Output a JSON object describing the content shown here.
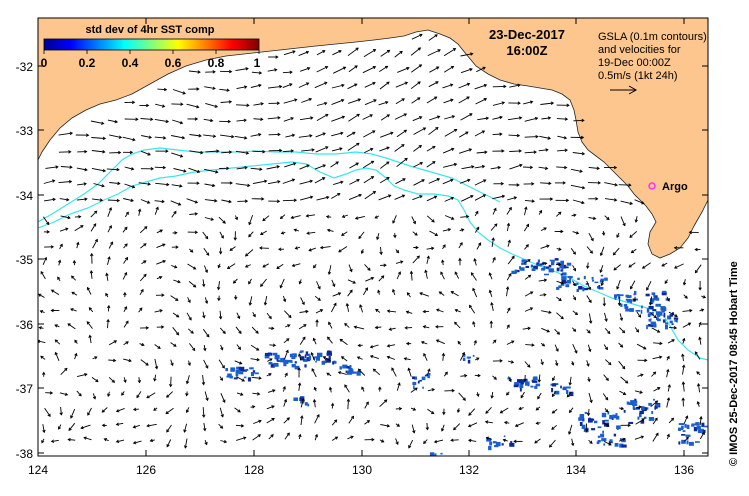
{
  "map": {
    "date_label": "23-Dec-2017",
    "time_label": "16:00Z",
    "legend_title": "std dev of 4hr SST comp",
    "legend_ticks": [
      "0",
      "0.2",
      "0.4",
      "0.6",
      "0.8",
      "1"
    ],
    "info_lines": [
      "GSLA (0.1m contours)",
      "and velocities for",
      "19-Dec 00:00Z",
      "0.5m/s (1kt 24h)"
    ],
    "argo_label": "Argo",
    "credit": "© IMOS 25-Dec-2017 08:45 Hobart Time",
    "lon_ticks": [
      "124",
      "126",
      "128",
      "130",
      "132",
      "134",
      "136"
    ],
    "lat_ticks": [
      "-32",
      "-33",
      "-34",
      "-35",
      "-36",
      "-37",
      "-38"
    ],
    "colors": {
      "land": "#fcc68e",
      "contour": "#39e6ec",
      "argo": "#ff33ff",
      "sst_patch": "#1a5fd0",
      "sst_dark": "#0a2a9a",
      "arrow": "#000000"
    }
  }
}
